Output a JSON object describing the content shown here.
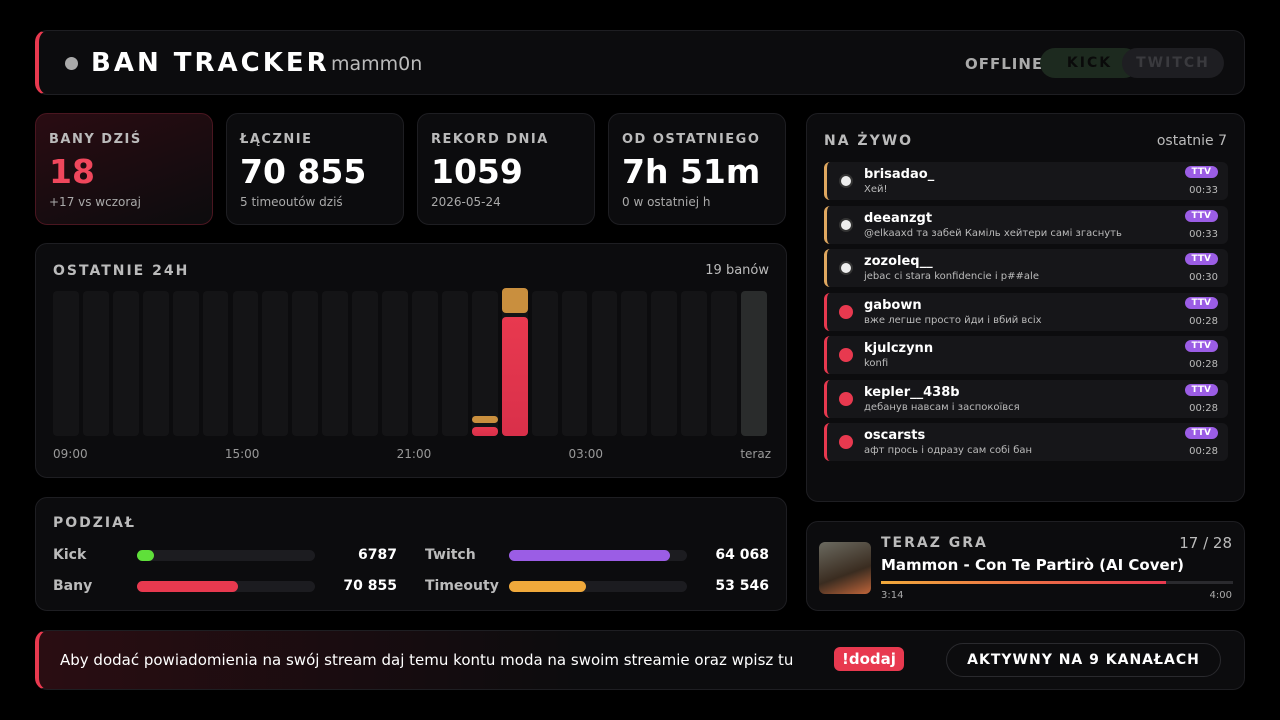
{
  "header": {
    "title": "BAN TRACKER",
    "channel": "mamm0n",
    "status": "OFFLINE",
    "platforms": [
      "KICK",
      "TWITCH"
    ]
  },
  "stats": [
    {
      "label": "BANY DZIŚ",
      "value": "18",
      "note": "+17 vs wczoraj"
    },
    {
      "label": "ŁĄCZNIE",
      "value": "70 855",
      "note": "5 timeoutów dziś"
    },
    {
      "label": "REKORD DNIA",
      "value": "1059",
      "note": "2026-05-24"
    },
    {
      "label": "OD OSTATNIEGO",
      "value": "7h 51m",
      "note": "0 w ostatniej h"
    }
  ],
  "last24h": {
    "title": "OSTATNIE 24H",
    "summary": "19 banów",
    "bans": [
      0,
      0,
      0,
      0,
      0,
      0,
      0,
      0,
      0,
      0,
      0,
      0,
      0,
      0,
      1,
      14,
      0,
      0,
      0,
      0,
      0,
      0,
      0,
      0
    ],
    "timeouts": [
      0,
      0,
      0,
      0,
      0,
      0,
      0,
      0,
      0,
      0,
      0,
      0,
      0,
      0,
      1,
      3,
      0,
      0,
      0,
      0,
      0,
      0,
      0,
      0
    ],
    "ban_color": "#e8394f",
    "timeout_color": "#c98f3e",
    "axis_labels": [
      "09:00",
      "15:00",
      "21:00",
      "03:00",
      "teraz"
    ]
  },
  "split": {
    "title": "PODZIAŁ",
    "rows": [
      [
        {
          "label": "Kick",
          "value": "6787",
          "color": "#5fe03a"
        },
        {
          "label": "Twitch",
          "value": "64 068",
          "color": "#9b5de5"
        }
      ],
      [
        {
          "label": "Bany",
          "value": "70 855",
          "color": "#e8394f"
        },
        {
          "label": "Timeouty",
          "value": "53 546",
          "color": "#f0a93b"
        }
      ]
    ]
  },
  "live": {
    "title": "NA ŻYWO",
    "subtitle": "ostatnie 7",
    "items": [
      {
        "type": "timeout",
        "user": "brisadao_",
        "message": "Хей!",
        "platform": "TTV",
        "time": "00:33"
      },
      {
        "type": "timeout",
        "user": "deeanzgt",
        "message": "@elkaaxd та забей Каміль хейтери самі згаснуть",
        "platform": "TTV",
        "time": "00:33"
      },
      {
        "type": "timeout",
        "user": "zozoleq__",
        "message": "jebac ci stara konfidencie i p##ale",
        "platform": "TTV",
        "time": "00:30"
      },
      {
        "type": "ban",
        "user": "gabown",
        "message": "вже легше просто йди і вбий всіх",
        "platform": "TTV",
        "time": "00:28"
      },
      {
        "type": "ban",
        "user": "kjulczynn",
        "message": "konfi",
        "platform": "TTV",
        "time": "00:28"
      },
      {
        "type": "ban",
        "user": "kepler__438b",
        "message": "дебанув навсам і заспокоївся",
        "platform": "TTV",
        "time": "00:28"
      },
      {
        "type": "ban",
        "user": "oscarsts",
        "message": "афт прось і одразу сам собі бан",
        "platform": "TTV",
        "time": "00:28"
      }
    ]
  },
  "now_playing": {
    "title": "TERAZ GRA",
    "position": "17 / 28",
    "song": "Mammon - Con Te Partirò (AI Cover)",
    "elapsed": "3:14",
    "duration": "4:00"
  },
  "footer": {
    "text": "Aby dodać powiadomienia na swój stream daj temu kontu moda na swoim streamie oraz wpisz tu",
    "command": "!dodaj",
    "button": "AKTYWNY NA 9 KANAŁACH"
  }
}
